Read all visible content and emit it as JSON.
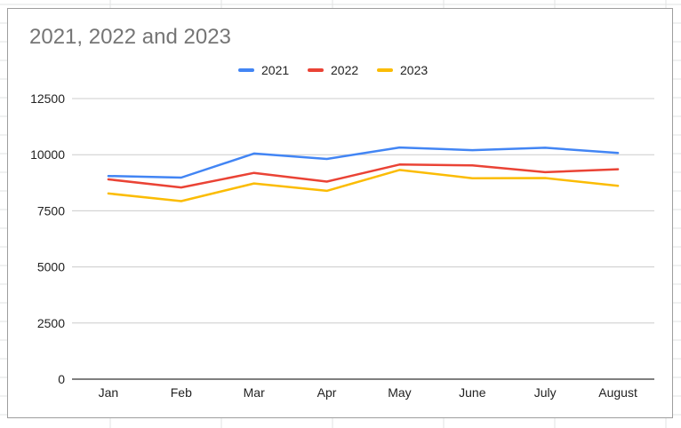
{
  "chart_data": {
    "type": "line",
    "title": "2021, 2022 and 2023",
    "xlabel": "",
    "ylabel": "",
    "categories": [
      "Jan",
      "Feb",
      "Mar",
      "Apr",
      "May",
      "June",
      "July",
      "August"
    ],
    "yticks": [
      "0",
      "2500",
      "5000",
      "7500",
      "10000",
      "12500"
    ],
    "ylim": [
      0,
      12500
    ],
    "grid": true,
    "legend_position": "top",
    "series": [
      {
        "name": "2021",
        "color": "#4285f4",
        "values": [
          9050,
          8980,
          10050,
          9810,
          10320,
          10200,
          10310,
          10080
        ]
      },
      {
        "name": "2022",
        "color": "#ea4335",
        "values": [
          8900,
          8540,
          9190,
          8800,
          9560,
          9520,
          9220,
          9350
        ]
      },
      {
        "name": "2023",
        "color": "#fbbc04",
        "values": [
          8270,
          7930,
          8720,
          8390,
          9320,
          8950,
          8960,
          8610
        ]
      }
    ]
  }
}
